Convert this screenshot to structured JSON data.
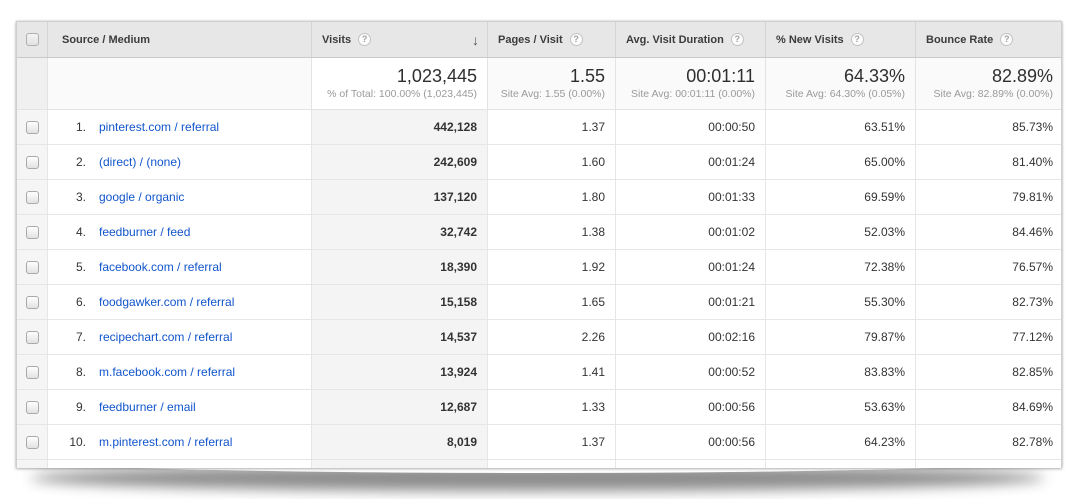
{
  "icons": {
    "help": "?",
    "sort_desc": "↓"
  },
  "colors": {
    "link": "#1155cc",
    "header_bg": "#e7e7e7",
    "sorted_col_bg": "#f4f4f4"
  },
  "table": {
    "columns": [
      {
        "key": "source",
        "label": "Source / Medium"
      },
      {
        "key": "visits",
        "label": "Visits"
      },
      {
        "key": "pages",
        "label": "Pages / Visit"
      },
      {
        "key": "duration",
        "label": "Avg. Visit Duration"
      },
      {
        "key": "new",
        "label": "% New Visits"
      },
      {
        "key": "bounce",
        "label": "Bounce Rate"
      }
    ],
    "summary": {
      "visits": {
        "value": "1,023,445",
        "sub": "% of Total: 100.00% (1,023,445)"
      },
      "pages": {
        "value": "1.55",
        "sub": "Site Avg: 1.55 (0.00%)"
      },
      "duration": {
        "value": "00:01:11",
        "sub": "Site Avg: 00:01:11 (0.00%)"
      },
      "new": {
        "value": "64.33%",
        "sub": "Site Avg: 64.30% (0.05%)"
      },
      "bounce": {
        "value": "82.89%",
        "sub": "Site Avg: 82.89% (0.00%)"
      }
    },
    "rows": [
      {
        "rank": "1.",
        "source": "pinterest.com / referral",
        "visits": "442,128",
        "pages": "1.37",
        "duration": "00:00:50",
        "new": "63.51%",
        "bounce": "85.73%"
      },
      {
        "rank": "2.",
        "source": "(direct) / (none)",
        "visits": "242,609",
        "pages": "1.60",
        "duration": "00:01:24",
        "new": "65.00%",
        "bounce": "81.40%"
      },
      {
        "rank": "3.",
        "source": "google / organic",
        "visits": "137,120",
        "pages": "1.80",
        "duration": "00:01:33",
        "new": "69.59%",
        "bounce": "79.81%"
      },
      {
        "rank": "4.",
        "source": "feedburner / feed",
        "visits": "32,742",
        "pages": "1.38",
        "duration": "00:01:02",
        "new": "52.03%",
        "bounce": "84.46%"
      },
      {
        "rank": "5.",
        "source": "facebook.com / referral",
        "visits": "18,390",
        "pages": "1.92",
        "duration": "00:01:24",
        "new": "72.38%",
        "bounce": "76.57%"
      },
      {
        "rank": "6.",
        "source": "foodgawker.com / referral",
        "visits": "15,158",
        "pages": "1.65",
        "duration": "00:01:21",
        "new": "55.30%",
        "bounce": "82.73%"
      },
      {
        "rank": "7.",
        "source": "recipechart.com / referral",
        "visits": "14,537",
        "pages": "2.26",
        "duration": "00:02:16",
        "new": "79.87%",
        "bounce": "77.12%"
      },
      {
        "rank": "8.",
        "source": "m.facebook.com / referral",
        "visits": "13,924",
        "pages": "1.41",
        "duration": "00:00:52",
        "new": "83.83%",
        "bounce": "82.85%"
      },
      {
        "rank": "9.",
        "source": "feedburner / email",
        "visits": "12,687",
        "pages": "1.33",
        "duration": "00:00:56",
        "new": "53.63%",
        "bounce": "84.69%"
      },
      {
        "rank": "10.",
        "source": "m.pinterest.com / referral",
        "visits": "8,019",
        "pages": "1.37",
        "duration": "00:00:56",
        "new": "64.23%",
        "bounce": "82.78%"
      }
    ]
  }
}
